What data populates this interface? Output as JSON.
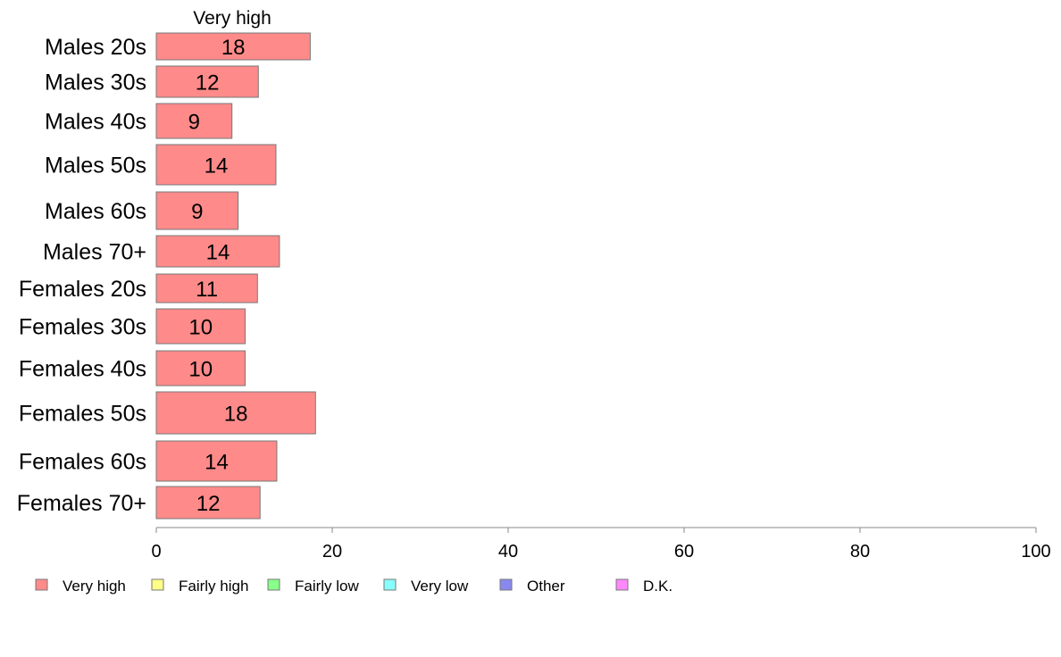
{
  "chart_data": {
    "type": "bar",
    "orientation": "horizontal",
    "column_header": "Very high",
    "categories": [
      "Males 20s",
      "Males 30s",
      "Males 40s",
      "Males 50s",
      "Males 60s",
      "Males 70+",
      "Females 20s",
      "Females 30s",
      "Females 40s",
      "Females 50s",
      "Females 60s",
      "Females 70+"
    ],
    "series": [
      {
        "name": "Very high",
        "color": "#ff8a8a",
        "values": [
          17.5,
          11.6,
          8.6,
          13.6,
          9.3,
          14.0,
          11.5,
          10.1,
          10.1,
          18.1,
          13.7,
          11.8
        ],
        "labels": [
          "18",
          "12",
          "9",
          "14",
          "9",
          "14",
          "11",
          "10",
          "10",
          "18",
          "14",
          "12"
        ]
      }
    ],
    "xlim": [
      0,
      100
    ],
    "xticks": [
      0,
      20,
      40,
      60,
      80,
      100
    ],
    "xtick_labels": [
      "0",
      "20",
      "40",
      "60",
      "80",
      "100"
    ],
    "grid": false,
    "legend_position": "bottom",
    "legend": [
      {
        "label": "Very high",
        "color": "#ff8a8a"
      },
      {
        "label": "Fairly high",
        "color": "#ffff88"
      },
      {
        "label": "Fairly low",
        "color": "#88ff88"
      },
      {
        "label": "Very low",
        "color": "#88ffff"
      },
      {
        "label": "Other",
        "color": "#8888ee"
      },
      {
        "label": "D.K.",
        "color": "#ff88ff"
      }
    ]
  }
}
